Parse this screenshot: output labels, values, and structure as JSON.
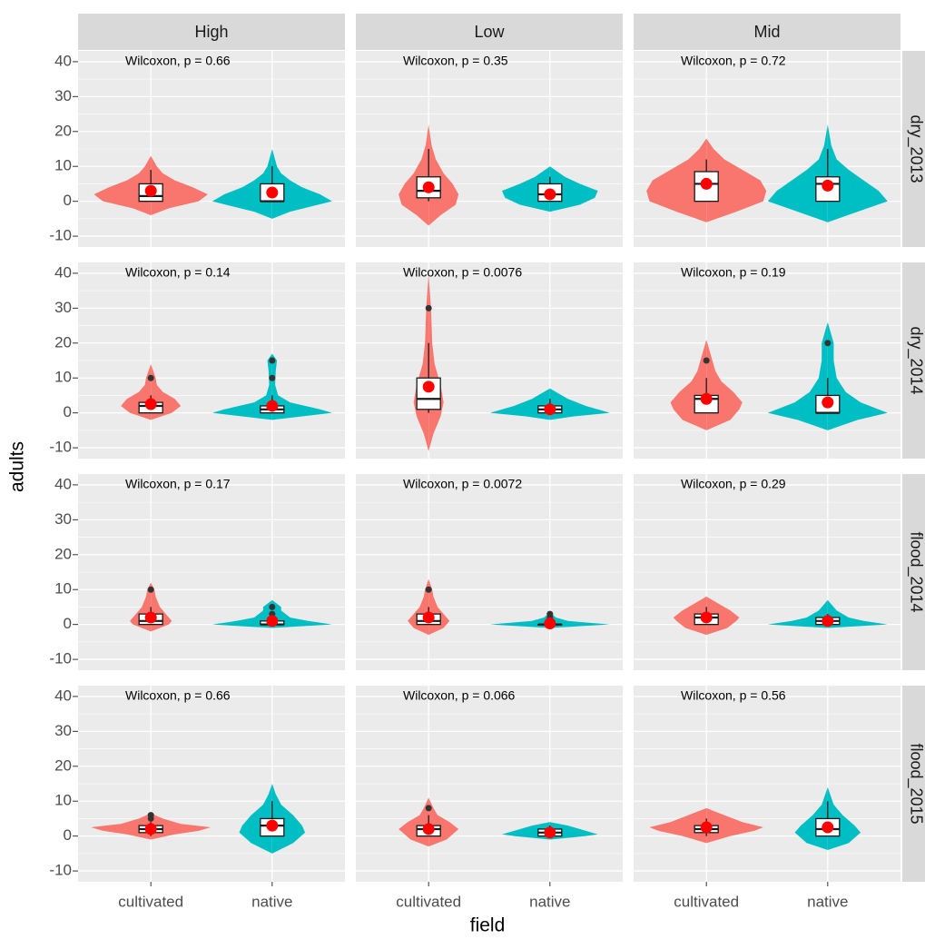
{
  "chart_data": {
    "type": "violin",
    "x_label": "field",
    "y_label": "adults",
    "columns": [
      "High",
      "Low",
      "Mid"
    ],
    "rows": [
      "dry_2013",
      "dry_2014",
      "flood_2014",
      "flood_2015"
    ],
    "categories": [
      "cultivated",
      "native"
    ],
    "colors": [
      "#F8766D",
      "#00BFC4"
    ],
    "mean_color": "#FF0000",
    "outlier_color": "#333333",
    "ylim": [
      -13.1,
      43.1
    ],
    "yticks": [
      -10,
      0,
      10,
      20,
      30,
      40
    ],
    "grid": true,
    "panels": [
      [
        {
          "annotation": "Wilcoxon, p = 0.66",
          "groups": [
            {
              "violin": {
                "y": [
                  -4,
                  -2,
                  0,
                  2,
                  4,
                  6,
                  8,
                  10,
                  13
                ],
                "density": [
                  0,
                  0.3,
                  0.8,
                  0.95,
                  0.7,
                  0.4,
                  0.2,
                  0.1,
                  0
                ]
              },
              "q1": 0,
              "median": 1.5,
              "q3": 5,
              "whisker_low": 0,
              "whisker_high": 9,
              "mean": 3,
              "outliers": []
            },
            {
              "violin": {
                "y": [
                  -5,
                  -3,
                  0,
                  2,
                  4,
                  6,
                  8,
                  10,
                  15
                ],
                "density": [
                  0,
                  0.3,
                  1.0,
                  0.8,
                  0.5,
                  0.3,
                  0.15,
                  0.08,
                  0
                ]
              },
              "q1": 0,
              "median": 0,
              "q3": 5,
              "whisker_low": 0,
              "whisker_high": 10,
              "mean": 2.5,
              "outliers": []
            }
          ]
        },
        {
          "annotation": "Wilcoxon, p = 0.35",
          "groups": [
            {
              "violin": {
                "y": [
                  -7,
                  -4,
                  -1,
                  2,
                  5,
                  8,
                  12,
                  16,
                  22
                ],
                "density": [
                  0,
                  0.2,
                  0.45,
                  0.5,
                  0.4,
                  0.25,
                  0.12,
                  0.05,
                  0
                ]
              },
              "q1": 1,
              "median": 3,
              "q3": 7,
              "whisker_low": 0,
              "whisker_high": 15,
              "mean": 4,
              "outliers": []
            },
            {
              "violin": {
                "y": [
                  -3,
                  -1,
                  1,
                  3,
                  5,
                  7,
                  10
                ],
                "density": [
                  0,
                  0.5,
                  0.75,
                  0.8,
                  0.5,
                  0.25,
                  0
                ]
              },
              "q1": 0,
              "median": 2,
              "q3": 5,
              "whisker_low": 0,
              "whisker_high": 7,
              "mean": 2,
              "outliers": []
            }
          ]
        },
        {
          "annotation": "Wilcoxon, p = 0.72",
          "groups": [
            {
              "violin": {
                "y": [
                  -6,
                  -3,
                  0,
                  3,
                  6,
                  9,
                  12,
                  15,
                  18
                ],
                "density": [
                  0,
                  0.5,
                  0.95,
                  1.0,
                  0.9,
                  0.6,
                  0.3,
                  0.12,
                  0
                ]
              },
              "q1": 0,
              "median": 5,
              "q3": 8.5,
              "whisker_low": 0,
              "whisker_high": 12,
              "mean": 5,
              "outliers": []
            },
            {
              "violin": {
                "y": [
                  -6,
                  -3,
                  0,
                  3,
                  6,
                  9,
                  12,
                  16,
                  22
                ],
                "density": [
                  0,
                  0.5,
                  1.0,
                  0.85,
                  0.6,
                  0.35,
                  0.15,
                  0.06,
                  0
                ]
              },
              "q1": 0,
              "median": 5,
              "q3": 7,
              "whisker_low": 0,
              "whisker_high": 15,
              "mean": 4.5,
              "outliers": []
            }
          ]
        }
      ],
      [
        {
          "annotation": "Wilcoxon, p = 0.14",
          "groups": [
            {
              "violin": {
                "y": [
                  -2,
                  0,
                  2,
                  4,
                  6,
                  8,
                  10,
                  14
                ],
                "density": [
                  0,
                  0.35,
                  0.5,
                  0.4,
                  0.2,
                  0.1,
                  0.08,
                  0
                ]
              },
              "q1": 0,
              "median": 2,
              "q3": 3,
              "whisker_low": 0,
              "whisker_high": 5,
              "mean": 2.5,
              "outliers": [
                10
              ]
            },
            {
              "violin": {
                "y": [
                  -2,
                  0,
                  1,
                  3,
                  5,
                  8,
                  12,
                  15,
                  17
                ],
                "density": [
                  0,
                  1.0,
                  0.8,
                  0.3,
                  0.1,
                  0.05,
                  0.06,
                  0.08,
                  0
                ]
              },
              "q1": 0,
              "median": 1,
              "q3": 2,
              "whisker_low": 0,
              "whisker_high": 5,
              "mean": 2,
              "outliers": [
                10,
                15
              ]
            }
          ]
        },
        {
          "annotation": "Wilcoxon, p = 0.0076",
          "groups": [
            {
              "violin": {
                "y": [
                  -11,
                  -6,
                  -1,
                  3,
                  8,
                  14,
                  20,
                  30,
                  40
                ],
                "density": [
                  0,
                  0.08,
                  0.2,
                  0.25,
                  0.2,
                  0.1,
                  0.06,
                  0.04,
                  0
                ]
              },
              "q1": 1,
              "median": 4,
              "q3": 10,
              "whisker_low": 0,
              "whisker_high": 20,
              "mean": 7.5,
              "outliers": [
                30
              ]
            },
            {
              "violin": {
                "y": [
                  -2,
                  -1,
                  0,
                  2,
                  4,
                  7
                ],
                "density": [
                  0,
                  0.4,
                  1.0,
                  0.6,
                  0.3,
                  0
                ]
              },
              "q1": 0,
              "median": 1,
              "q3": 2,
              "whisker_low": 0,
              "whisker_high": 4,
              "mean": 1,
              "outliers": []
            }
          ]
        },
        {
          "annotation": "Wilcoxon, p = 0.19",
          "groups": [
            {
              "violin": {
                "y": [
                  -5,
                  -2,
                  1,
                  3,
                  6,
                  9,
                  12,
                  15,
                  21
                ],
                "density": [
                  0,
                  0.4,
                  0.55,
                  0.6,
                  0.45,
                  0.25,
                  0.15,
                  0.1,
                  0
                ]
              },
              "q1": 0,
              "median": 4,
              "q3": 5,
              "whisker_low": 0,
              "whisker_high": 10,
              "mean": 4,
              "outliers": [
                15
              ]
            },
            {
              "violin": {
                "y": [
                  -5,
                  -2,
                  0,
                  3,
                  6,
                  10,
                  15,
                  20,
                  26
                ],
                "density": [
                  0,
                  0.5,
                  1.0,
                  0.55,
                  0.3,
                  0.15,
                  0.1,
                  0.1,
                  0
                ]
              },
              "q1": 0,
              "median": 0,
              "q3": 5,
              "whisker_low": 0,
              "whisker_high": 10,
              "mean": 3,
              "outliers": [
                20
              ]
            }
          ]
        }
      ],
      [
        {
          "annotation": "Wilcoxon, p = 0.17",
          "groups": [
            {
              "violin": {
                "y": [
                  -2,
                  0,
                  1,
                  3,
                  5,
                  8,
                  10,
                  12
                ],
                "density": [
                  0,
                  0.3,
                  0.35,
                  0.25,
                  0.15,
                  0.08,
                  0.06,
                  0
                ]
              },
              "q1": 0,
              "median": 1,
              "q3": 3,
              "whisker_low": 0,
              "whisker_high": 5,
              "mean": 2,
              "outliers": [
                10
              ]
            },
            {
              "violin": {
                "y": [
                  -1,
                  0,
                  1,
                  2,
                  4,
                  5,
                  7
                ],
                "density": [
                  0,
                  1.0,
                  0.6,
                  0.3,
                  0.15,
                  0.15,
                  0
                ]
              },
              "q1": 0,
              "median": 0,
              "q3": 1,
              "whisker_low": 0,
              "whisker_high": 2,
              "mean": 1,
              "outliers": [
                3,
                5
              ]
            }
          ]
        },
        {
          "annotation": "Wilcoxon, p = 0.0072",
          "groups": [
            {
              "violin": {
                "y": [
                  -3,
                  -1,
                  1,
                  3,
                  5,
                  8,
                  10,
                  13
                ],
                "density": [
                  0,
                  0.25,
                  0.35,
                  0.25,
                  0.15,
                  0.08,
                  0.06,
                  0
                ]
              },
              "q1": 0,
              "median": 1,
              "q3": 3,
              "whisker_low": 0,
              "whisker_high": 5,
              "mean": 2,
              "outliers": [
                10
              ]
            },
            {
              "violin": {
                "y": [
                  -1,
                  0,
                  1,
                  2,
                  3.5
                ],
                "density": [
                  0,
                  1.0,
                  0.3,
                  0.1,
                  0
                ]
              },
              "q1": 0,
              "median": 0,
              "q3": 0,
              "whisker_low": 0,
              "whisker_high": 0,
              "mean": 0.3,
              "outliers": [
                1,
                2,
                3
              ]
            }
          ]
        },
        {
          "annotation": "Wilcoxon, p = 0.29",
          "groups": [
            {
              "violin": {
                "y": [
                  -3,
                  -1,
                  1,
                  2,
                  4,
                  6,
                  8
                ],
                "density": [
                  0,
                  0.35,
                  0.5,
                  0.55,
                  0.4,
                  0.2,
                  0
                ]
              },
              "q1": 0,
              "median": 2,
              "q3": 3,
              "whisker_low": 0,
              "whisker_high": 5,
              "mean": 2,
              "outliers": []
            },
            {
              "violin": {
                "y": [
                  -1,
                  0,
                  1,
                  2,
                  4,
                  7
                ],
                "density": [
                  0,
                  1.0,
                  0.6,
                  0.35,
                  0.15,
                  0
                ]
              },
              "q1": 0,
              "median": 1,
              "q3": 2,
              "whisker_low": 0,
              "whisker_high": 3,
              "mean": 1,
              "outliers": []
            }
          ]
        }
      ],
      [
        {
          "annotation": "Wilcoxon, p = 0.66",
          "groups": [
            {
              "violin": {
                "y": [
                  -1,
                  0.5,
                  1.5,
                  2.5,
                  3.5,
                  5,
                  6.5
                ],
                "density": [
                  0,
                  0.4,
                  0.8,
                  1.0,
                  0.5,
                  0.2,
                  0
                ]
              },
              "q1": 1,
              "median": 2,
              "q3": 3,
              "whisker_low": 0,
              "whisker_high": 4,
              "mean": 2,
              "outliers": [
                5,
                6
              ]
            },
            {
              "violin": {
                "y": [
                  -5,
                  -2,
                  1,
                  3,
                  6,
                  9,
                  12,
                  15
                ],
                "density": [
                  0,
                  0.35,
                  0.55,
                  0.5,
                  0.35,
                  0.15,
                  0.06,
                  0
                ]
              },
              "q1": 0,
              "median": 3,
              "q3": 5,
              "whisker_low": 0,
              "whisker_high": 10,
              "mean": 3,
              "outliers": []
            }
          ]
        },
        {
          "annotation": "Wilcoxon, p = 0.066",
          "groups": [
            {
              "violin": {
                "y": [
                  -3,
                  -1,
                  2,
                  4,
                  6,
                  8,
                  11
                ],
                "density": [
                  0,
                  0.3,
                  0.5,
                  0.35,
                  0.15,
                  0.08,
                  0
                ]
              },
              "q1": 0,
              "median": 2,
              "q3": 3,
              "whisker_low": 0,
              "whisker_high": 6,
              "mean": 2,
              "outliers": [
                8
              ]
            },
            {
              "violin": {
                "y": [
                  -1,
                  0,
                  0.5,
                  2,
                  3,
                  4
                ],
                "density": [
                  0,
                  0.6,
                  0.8,
                  0.5,
                  0.3,
                  0
                ]
              },
              "q1": 0,
              "median": 1,
              "q3": 2,
              "whisker_low": 0,
              "whisker_high": 3,
              "mean": 1,
              "outliers": []
            }
          ]
        },
        {
          "annotation": "Wilcoxon, p = 0.56",
          "groups": [
            {
              "violin": {
                "y": [
                  -2,
                  0,
                  1.5,
                  2.5,
                  4,
                  6,
                  8
                ],
                "density": [
                  0,
                  0.4,
                  0.8,
                  0.95,
                  0.6,
                  0.3,
                  0
                ]
              },
              "q1": 1,
              "median": 2,
              "q3": 3,
              "whisker_low": 0,
              "whisker_high": 5,
              "mean": 2.5,
              "outliers": []
            },
            {
              "violin": {
                "y": [
                  -4,
                  -2,
                  1,
                  3,
                  6,
                  9,
                  14
                ],
                "density": [
                  0,
                  0.35,
                  0.55,
                  0.45,
                  0.25,
                  0.1,
                  0
                ]
              },
              "q1": 0,
              "median": 2,
              "q3": 5,
              "whisker_low": 0,
              "whisker_high": 10,
              "mean": 2.5,
              "outliers": []
            }
          ]
        }
      ]
    ]
  }
}
